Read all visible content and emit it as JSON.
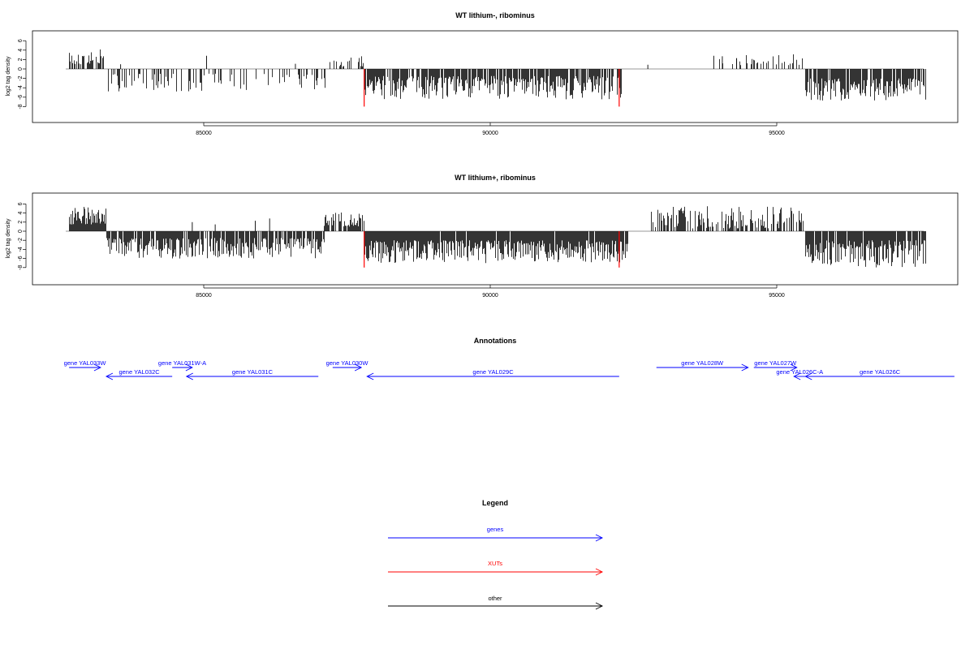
{
  "chart_data": [
    {
      "type": "bar",
      "title": "WT lithium-, ribominus",
      "xlabel": "",
      "ylabel": "log2 tag density",
      "xlim": [
        82500,
        97800
      ],
      "ylim": [
        -8,
        6
      ],
      "xticks": [
        85000,
        90000,
        95000
      ],
      "yticks": [
        6,
        4,
        2,
        0,
        -2,
        -4,
        -6,
        -8
      ],
      "grid": false,
      "highlight_color": "#ff0000",
      "highlight_positions": [
        87800,
        92250
      ],
      "signal_segments": [
        {
          "from": 82650,
          "to": 83250,
          "sign": 1,
          "min": 1.0,
          "max": 4.2,
          "density": 0.55,
          "strand": "plus"
        },
        {
          "from": 83250,
          "to": 87200,
          "sign": -1,
          "min": 1.0,
          "max": 4.8,
          "density": 0.28,
          "strand": "minus"
        },
        {
          "from": 87200,
          "to": 87800,
          "sign": 1,
          "min": 0.5,
          "max": 2.7,
          "density": 0.25,
          "strand": "plus"
        },
        {
          "from": 87800,
          "to": 92300,
          "sign": -1,
          "min": 1.5,
          "max": 6.5,
          "density": 0.85,
          "strand": "minus"
        },
        {
          "from": 94000,
          "to": 95500,
          "sign": 1,
          "min": 0.8,
          "max": 3.3,
          "density": 0.25,
          "strand": "plus"
        },
        {
          "from": 95500,
          "to": 97600,
          "sign": -1,
          "min": 2.0,
          "max": 6.8,
          "density": 0.8,
          "strand": "minus"
        }
      ],
      "isolated_bars": [
        {
          "x": 85050,
          "y": 2.8
        },
        {
          "x": 92750,
          "y": 0.9
        },
        {
          "x": 93900,
          "y": 2.8
        },
        {
          "x": 94050,
          "y": 2.7
        },
        {
          "x": 94300,
          "y": 2.3
        },
        {
          "x": 86600,
          "y": 1.1
        },
        {
          "x": 83550,
          "y": 1.0
        }
      ]
    },
    {
      "type": "bar",
      "title": "WT lithium+, ribominus",
      "xlabel": "",
      "ylabel": "log2 tag density",
      "xlim": [
        82500,
        97800
      ],
      "ylim": [
        -8,
        6
      ],
      "xticks": [
        85000,
        90000,
        95000
      ],
      "yticks": [
        6,
        4,
        2,
        0,
        -2,
        -4,
        -6,
        -8
      ],
      "grid": false,
      "highlight_color": "#ff0000",
      "highlight_positions": [
        87800,
        92250
      ],
      "signal_segments": [
        {
          "from": 82650,
          "to": 83300,
          "sign": 1,
          "min": 1.5,
          "max": 5.5,
          "density": 0.9,
          "strand": "plus"
        },
        {
          "from": 83300,
          "to": 87100,
          "sign": -1,
          "min": 1.5,
          "max": 6.0,
          "density": 0.85,
          "strand": "minus"
        },
        {
          "from": 87100,
          "to": 87800,
          "sign": 1,
          "min": 1.0,
          "max": 4.2,
          "density": 0.75,
          "strand": "plus"
        },
        {
          "from": 87800,
          "to": 92400,
          "sign": -1,
          "min": 2.0,
          "max": 7.0,
          "density": 0.95,
          "strand": "minus"
        },
        {
          "from": 92800,
          "to": 95500,
          "sign": 1,
          "min": 0.6,
          "max": 5.5,
          "density": 0.6,
          "strand": "plus"
        },
        {
          "from": 95500,
          "to": 97600,
          "sign": -1,
          "min": 2.0,
          "max": 8.0,
          "density": 0.9,
          "strand": "minus"
        }
      ],
      "isolated_bars": [
        {
          "x": 84800,
          "y": 2.0
        },
        {
          "x": 85200,
          "y": 1.5
        },
        {
          "x": 85900,
          "y": 2.3
        },
        {
          "x": 86150,
          "y": 2.8
        }
      ]
    }
  ],
  "annotations": {
    "title": "Annotations",
    "genes": [
      {
        "label": "gene YAL033W",
        "start": 82650,
        "end": 83200,
        "strand": "+",
        "row": 0
      },
      {
        "label": "gene YAL032C",
        "start": 83300,
        "end": 84450,
        "strand": "-",
        "row": 1
      },
      {
        "label": "gene YAL031W-A",
        "start": 84450,
        "end": 84800,
        "strand": "+",
        "row": 0
      },
      {
        "label": "gene YAL031C",
        "start": 84700,
        "end": 87000,
        "strand": "-",
        "row": 1
      },
      {
        "label": "gene YAL030W",
        "start": 87250,
        "end": 87750,
        "strand": "+",
        "row": 0
      },
      {
        "label": "gene YAL029C",
        "start": 87850,
        "end": 92250,
        "strand": "-",
        "row": 1
      },
      {
        "label": "gene YAL028W",
        "start": 92900,
        "end": 94500,
        "strand": "+",
        "row": 0
      },
      {
        "label": "gene YAL027W",
        "start": 94600,
        "end": 95350,
        "strand": "+",
        "row": 0
      },
      {
        "label": "gene YAL026C-A",
        "start": 95300,
        "end": 95500,
        "strand": "-",
        "row": 1
      },
      {
        "label": "gene YAL026C",
        "start": 95500,
        "end": 98100,
        "strand": "-",
        "row": 1
      }
    ]
  },
  "legend": {
    "title": "Legend",
    "items": [
      {
        "label": "genes",
        "color": "#0000ff"
      },
      {
        "label": "XUTs",
        "color": "#ff0000"
      },
      {
        "label": "other",
        "color": "#000000"
      }
    ]
  }
}
